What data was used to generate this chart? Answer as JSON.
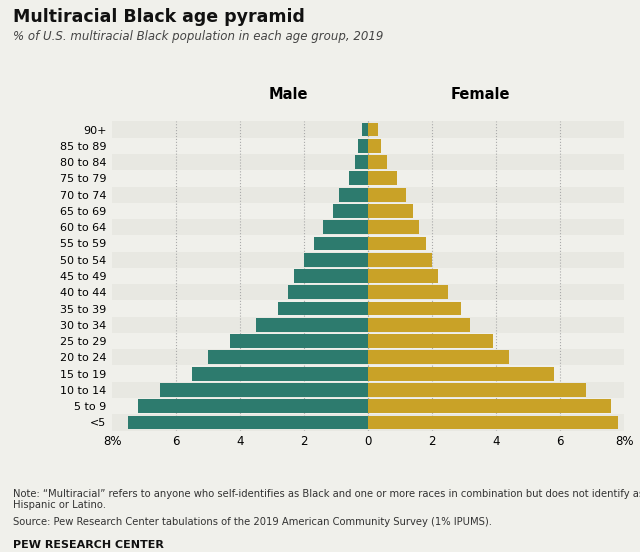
{
  "title": "Multiracial Black age pyramid",
  "subtitle": "% of U.S. multiracial Black population in each age group, 2019",
  "age_groups": [
    "<5",
    "5 to 9",
    "10 to 14",
    "15 to 19",
    "20 to 24",
    "25 to 29",
    "30 to 34",
    "35 to 39",
    "40 to 44",
    "45 to 49",
    "50 to 54",
    "55 to 59",
    "60 to 64",
    "65 to 69",
    "70 to 74",
    "75 to 79",
    "80 to 84",
    "85 to 89",
    "90+"
  ],
  "male": [
    7.5,
    7.2,
    6.5,
    5.5,
    5.0,
    4.3,
    3.5,
    2.8,
    2.5,
    2.3,
    2.0,
    1.7,
    1.4,
    1.1,
    0.9,
    0.6,
    0.4,
    0.3,
    0.2
  ],
  "female": [
    7.8,
    7.6,
    6.8,
    5.8,
    4.4,
    3.9,
    3.2,
    2.9,
    2.5,
    2.2,
    2.0,
    1.8,
    1.6,
    1.4,
    1.2,
    0.9,
    0.6,
    0.4,
    0.3
  ],
  "male_color": "#2d7b6e",
  "female_color": "#c9a227",
  "background_color": "#f0f0eb",
  "bar_background_even": "#e8e8e2",
  "bar_background_odd": "#f0f0eb",
  "xlabel_left": "Male",
  "xlabel_right": "Female",
  "note": "Note: “Multiracial” refers to anyone who self-identifies as Black and one or more races in combination but does not identify as\nHispanic or Latino.",
  "source": "Source: Pew Research Center tabulations of the 2019 American Community Survey (1% IPUMS).",
  "footer": "PEW RESEARCH CENTER",
  "xlim": 8,
  "tick_values": [
    0,
    2,
    4,
    6,
    8
  ],
  "grid_color": "#aaaaaa"
}
